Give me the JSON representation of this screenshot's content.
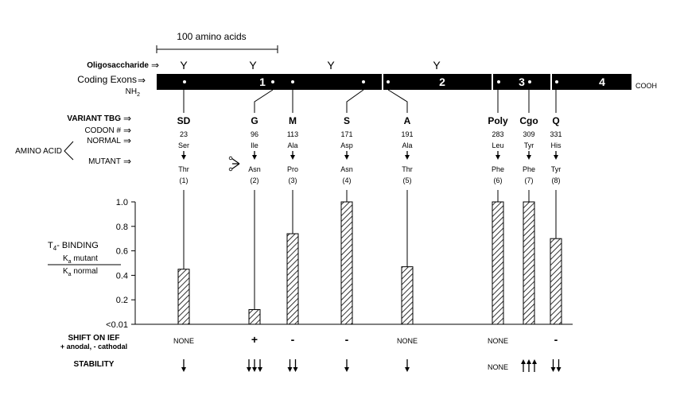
{
  "scale_bar_label": "100 amino acids",
  "oligosaccharide_label": "Oligosaccharide",
  "coding_exons_label": "Coding Exons",
  "nh2_label": "NH",
  "nh2_sub": "2",
  "cooh_label": "COOH",
  "exon_numbers": [
    "1",
    "2",
    "3",
    "4"
  ],
  "row_labels": {
    "variant": "VARIANT TBG",
    "codon": "CODON #",
    "normal": "NORMAL",
    "amino_acid": "AMINO ACID",
    "mutant": "MUTANT"
  },
  "binding_label": {
    "main": "T",
    "main_sub": "4",
    "main_rest": "- BINDING",
    "num": "K",
    "num_sub": "a",
    "num_rest": " mutant",
    "den": "K",
    "den_sub": "a",
    "den_rest": " normal"
  },
  "shift_label": "SHIFT ON IEF",
  "shift_sublabel": "+ anodal, - cathodal",
  "stability_label": "STABILITY",
  "variants": [
    {
      "name": "SD",
      "codon": "23",
      "normal": "Ser",
      "mutant": "Thr",
      "index": "(1)",
      "binding": 0.45,
      "shift": "NONE",
      "stability": "down1"
    },
    {
      "name": "G",
      "codon": "96",
      "normal": "Ile",
      "mutant": "Asn",
      "index": "(2)",
      "binding": 0.12,
      "shift": "+",
      "stability": "down3"
    },
    {
      "name": "M",
      "codon": "113",
      "normal": "Ala",
      "mutant": "Pro",
      "index": "(3)",
      "binding": 0.74,
      "shift": "-",
      "stability": "down2"
    },
    {
      "name": "S",
      "codon": "171",
      "normal": "Asp",
      "mutant": "Asn",
      "index": "(4)",
      "binding": 1.0,
      "shift": "-",
      "stability": "down1"
    },
    {
      "name": "A",
      "codon": "191",
      "normal": "Ala",
      "mutant": "Thr",
      "index": "(5)",
      "binding": 0.47,
      "shift": "NONE",
      "stability": "down1"
    },
    {
      "name": "Poly",
      "codon": "283",
      "normal": "Leu",
      "mutant": "Phe",
      "index": "(6)",
      "binding": 1.0,
      "shift": "NONE",
      "stability": "NONE"
    },
    {
      "name": "Cgo",
      "codon": "309",
      "normal": "Tyr",
      "mutant": "Phe",
      "index": "(7)",
      "binding": 1.0,
      "shift": "",
      "stability": "up3"
    },
    {
      "name": "Q",
      "codon": "331",
      "normal": "His",
      "mutant": "Tyr",
      "index": "(8)",
      "binding": 0.7,
      "shift": "-",
      "stability": "down2"
    }
  ],
  "y_ticks": [
    "1.0",
    "0.8",
    "0.6",
    "0.4",
    "0.2",
    "<0.01"
  ],
  "y_tick_values": [
    1.0,
    0.8,
    0.6,
    0.4,
    0.2,
    0.0
  ]
}
